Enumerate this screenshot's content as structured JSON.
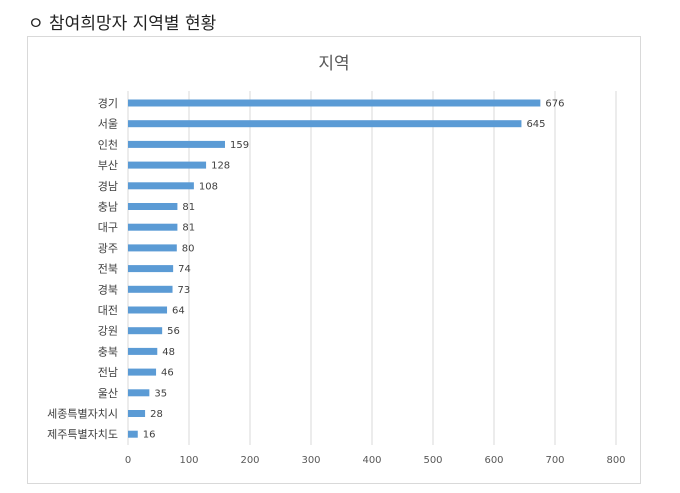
{
  "heading": "ㅇ 참여희망자 지역별 현황",
  "chart_data": {
    "type": "bar",
    "orientation": "horizontal",
    "title": "지역",
    "categories": [
      "경기",
      "서울",
      "인천",
      "부산",
      "경남",
      "충남",
      "대구",
      "광주",
      "전북",
      "경북",
      "대전",
      "강원",
      "충북",
      "전남",
      "울산",
      "세종특별자치시",
      "제주특별자치도"
    ],
    "values": [
      676,
      645,
      159,
      128,
      108,
      81,
      81,
      80,
      74,
      73,
      64,
      56,
      48,
      46,
      35,
      28,
      16
    ],
    "xlim": [
      0,
      800
    ],
    "xticks": [
      0,
      100,
      200,
      300,
      400,
      500,
      600,
      700,
      800
    ],
    "grid": true,
    "legend": "none",
    "bar_color": "#5b9bd5",
    "data_labels": true
  }
}
